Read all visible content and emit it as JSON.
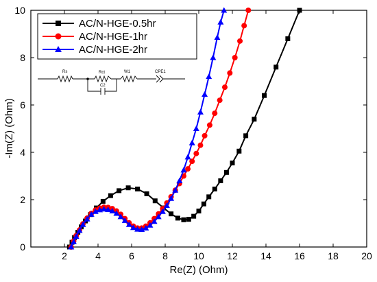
{
  "chart_data": {
    "type": "scatter",
    "xlabel": "Re(Z) (Ohm)",
    "ylabel": "-Im(Z) (Ohm)",
    "xlim": [
      0,
      20
    ],
    "ylim": [
      0,
      10
    ],
    "xticks": [
      2,
      4,
      6,
      8,
      10,
      12,
      14,
      16,
      18,
      20
    ],
    "yticks": [
      0,
      2,
      4,
      6,
      8,
      10
    ],
    "grid": false,
    "legend_position": "top-left",
    "series": [
      {
        "name": "AC/N-HGE-0.5hr",
        "color": "#000000",
        "marker": "square",
        "x": [
          2.3,
          2.45,
          2.6,
          2.8,
          3.0,
          3.25,
          3.55,
          3.9,
          4.3,
          4.75,
          5.25,
          5.8,
          6.35,
          6.9,
          7.4,
          7.9,
          8.35,
          8.75,
          9.1,
          9.4,
          9.7,
          10.0,
          10.3,
          10.6,
          10.95,
          11.3,
          11.65,
          12.0,
          12.4,
          12.8,
          13.3,
          13.9,
          14.6,
          15.3,
          16.0
        ],
        "y": [
          0.0,
          0.2,
          0.4,
          0.62,
          0.85,
          1.1,
          1.37,
          1.65,
          1.93,
          2.17,
          2.38,
          2.5,
          2.45,
          2.25,
          1.95,
          1.65,
          1.4,
          1.22,
          1.15,
          1.17,
          1.3,
          1.52,
          1.82,
          2.12,
          2.45,
          2.8,
          3.15,
          3.55,
          4.05,
          4.7,
          5.4,
          6.4,
          7.6,
          8.8,
          10.0
        ]
      },
      {
        "name": "AC/N-HGE-1hr",
        "color": "#ff0000",
        "marker": "circle",
        "x": [
          2.4,
          2.55,
          2.7,
          2.9,
          3.1,
          3.35,
          3.6,
          3.85,
          4.1,
          4.35,
          4.6,
          4.85,
          5.1,
          5.35,
          5.6,
          5.85,
          6.1,
          6.35,
          6.6,
          6.85,
          7.1,
          7.35,
          7.6,
          7.85,
          8.1,
          8.35,
          8.6,
          8.85,
          9.1,
          9.35,
          9.6,
          9.85,
          10.1,
          10.35,
          10.65,
          10.95,
          11.25,
          11.55,
          11.85,
          12.15,
          12.45,
          12.7,
          12.95
        ],
        "y": [
          0.0,
          0.25,
          0.48,
          0.72,
          0.98,
          1.22,
          1.42,
          1.56,
          1.64,
          1.68,
          1.67,
          1.62,
          1.52,
          1.38,
          1.2,
          1.02,
          0.88,
          0.8,
          0.8,
          0.88,
          1.02,
          1.2,
          1.4,
          1.62,
          1.86,
          2.12,
          2.4,
          2.68,
          3.0,
          3.3,
          3.62,
          3.95,
          4.3,
          4.7,
          5.15,
          5.65,
          6.2,
          6.75,
          7.35,
          8.0,
          8.7,
          9.35,
          10.0
        ]
      },
      {
        "name": "AC/N-HGE-2hr",
        "color": "#0000ff",
        "marker": "triangle",
        "x": [
          2.4,
          2.55,
          2.7,
          2.9,
          3.1,
          3.35,
          3.6,
          3.85,
          4.1,
          4.35,
          4.6,
          4.85,
          5.1,
          5.35,
          5.6,
          5.85,
          6.1,
          6.35,
          6.6,
          6.85,
          7.1,
          7.35,
          7.6,
          7.85,
          8.1,
          8.35,
          8.6,
          8.85,
          9.1,
          9.35,
          9.6,
          9.85,
          10.1,
          10.35,
          10.6,
          10.85,
          11.1,
          11.3,
          11.5
        ],
        "y": [
          0.0,
          0.22,
          0.45,
          0.7,
          0.95,
          1.18,
          1.38,
          1.5,
          1.57,
          1.6,
          1.58,
          1.52,
          1.42,
          1.28,
          1.12,
          0.95,
          0.82,
          0.75,
          0.74,
          0.8,
          0.92,
          1.08,
          1.28,
          1.5,
          1.75,
          2.05,
          2.4,
          2.8,
          3.25,
          3.8,
          4.4,
          5.0,
          5.7,
          6.45,
          7.2,
          8.0,
          8.85,
          9.5,
          10.0
        ]
      }
    ],
    "inset_circuit": {
      "labels": [
        "Rs",
        "Rct",
        "W1",
        "CPE1",
        "C2"
      ]
    }
  }
}
